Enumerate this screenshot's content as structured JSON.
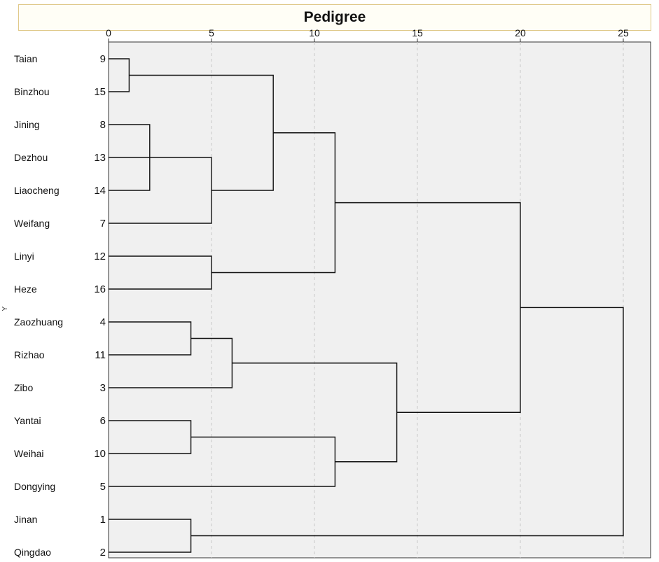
{
  "chart_data": {
    "type": "dendrogram",
    "title": "Pedigree",
    "ylabel": "Y",
    "x_ticks": [
      0,
      5,
      10,
      15,
      20,
      25
    ],
    "xlim": [
      0,
      26
    ],
    "grid": "vertical dashed",
    "leaves": [
      {
        "name": "Taian",
        "id": "9"
      },
      {
        "name": "Binzhou",
        "id": "15"
      },
      {
        "name": "Jining",
        "id": "8"
      },
      {
        "name": "Dezhou",
        "id": "13"
      },
      {
        "name": "Liaocheng",
        "id": "14"
      },
      {
        "name": "Weifang",
        "id": "7"
      },
      {
        "name": "Linyi",
        "id": "12"
      },
      {
        "name": "Heze",
        "id": "16"
      },
      {
        "name": "Zaozhuang",
        "id": "4"
      },
      {
        "name": "Rizhao",
        "id": "11"
      },
      {
        "name": "Zibo",
        "id": "3"
      },
      {
        "name": "Yantai",
        "id": "6"
      },
      {
        "name": "Weihai",
        "id": "10"
      },
      {
        "name": "Dongying",
        "id": "5"
      },
      {
        "name": "Jinan",
        "id": "1"
      },
      {
        "name": "Qingdao",
        "id": "2"
      }
    ],
    "merges": [
      {
        "a": "L0",
        "b": "L1",
        "distance": 1
      },
      {
        "a": "L2",
        "b": "L4",
        "distance": 2
      },
      {
        "a": "M1",
        "b": "L3",
        "distance": 2
      },
      {
        "a": "M2",
        "b": "L5",
        "distance": 5
      },
      {
        "a": "L6",
        "b": "L7",
        "distance": 5
      },
      {
        "a": "M0",
        "b": "M3",
        "distance": 8
      },
      {
        "a": "M5",
        "b": "M4",
        "distance": 11
      },
      {
        "a": "L8",
        "b": "L9",
        "distance": 4
      },
      {
        "a": "M7",
        "b": "L10",
        "distance": 6
      },
      {
        "a": "L11",
        "b": "L12",
        "distance": 4
      },
      {
        "a": "M9",
        "b": "L13",
        "distance": 11
      },
      {
        "a": "M8",
        "b": "M10",
        "distance": 14
      },
      {
        "a": "M6",
        "b": "M11",
        "distance": 20
      },
      {
        "a": "L14",
        "b": "L15",
        "distance": 4
      },
      {
        "a": "M12",
        "b": "M13",
        "distance": 25
      }
    ]
  }
}
